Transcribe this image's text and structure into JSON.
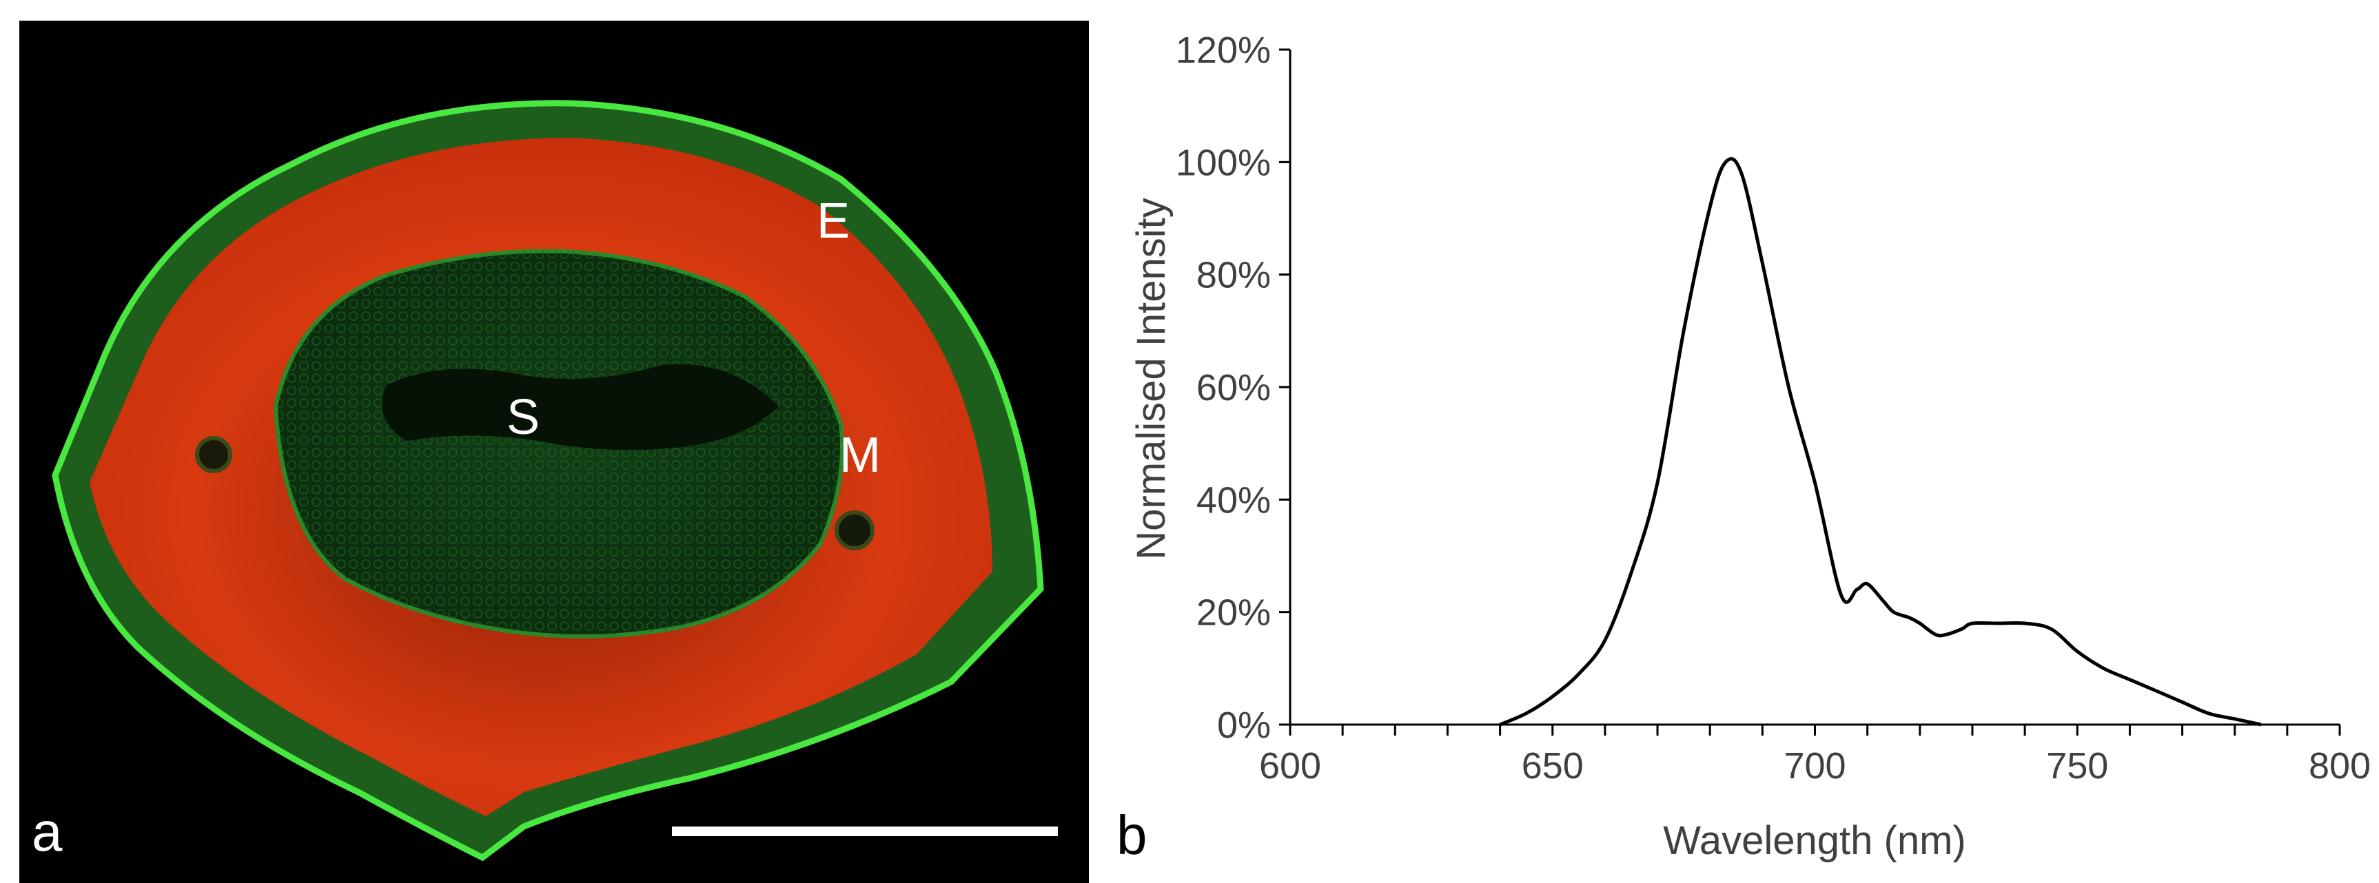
{
  "panel_a": {
    "label": "a",
    "region_labels": {
      "epidermis": "E",
      "stele": "S",
      "mesophyll": "M"
    },
    "colors": {
      "background": "#000000",
      "epidermis": "#44e03c",
      "mesophyll": "#d83a10",
      "stele": "#0f3a12",
      "scale_bar": "#ffffff"
    }
  },
  "chart_data": {
    "type": "line",
    "panel_label": "b",
    "title": "",
    "xlabel": "Wavelength (nm)",
    "ylabel": "Normalised Intensity",
    "xlim": [
      600,
      800
    ],
    "ylim": [
      0,
      120
    ],
    "x_ticks": [
      600,
      650,
      700,
      750,
      800
    ],
    "x_minor_step": 10,
    "y_ticks": [
      0,
      20,
      40,
      60,
      80,
      100,
      120
    ],
    "x_tick_labels": [
      "600",
      "650",
      "700",
      "750",
      "800"
    ],
    "y_tick_labels": [
      "0%",
      "20%",
      "40%",
      "60%",
      "80%",
      "100%",
      "120%"
    ],
    "grid": false,
    "legend": "none",
    "line_color": "#000000",
    "series": [
      {
        "name": "Normalised Intensity",
        "x": [
          640,
          645,
          650,
          655,
          660,
          665,
          670,
          675,
          680,
          683,
          686,
          690,
          695,
          700,
          705,
          708,
          710,
          713,
          715,
          718,
          720,
          723,
          725,
          728,
          730,
          735,
          740,
          745,
          750,
          755,
          760,
          765,
          770,
          775,
          780,
          785
        ],
        "y": [
          0,
          2,
          5,
          9,
          15,
          27,
          43,
          70,
          92,
          100,
          98,
          82,
          60,
          43,
          23,
          24,
          25,
          22,
          20,
          19,
          18,
          16,
          16,
          17,
          18,
          18,
          18,
          17,
          13,
          10,
          8,
          6,
          4,
          2,
          1,
          0
        ]
      }
    ]
  }
}
